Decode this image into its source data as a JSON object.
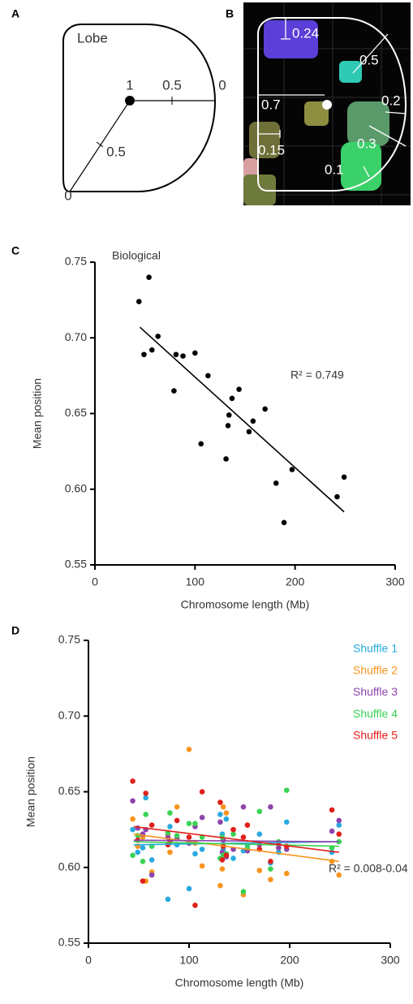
{
  "figure": {
    "panel_a": {
      "label": "A",
      "lobe_label": "Lobe",
      "center_label": "1",
      "radial_labels": [
        "0.5",
        "0",
        "0.5",
        "0"
      ]
    },
    "panel_b": {
      "label": "B",
      "distance_labels": [
        "0.24",
        "0.5",
        "0.7",
        "0.2",
        "0.15",
        "0.3",
        "0.1"
      ]
    }
  },
  "chart_data": [
    {
      "type": "scatter",
      "panel_label": "C",
      "annotation": "Biological",
      "r2_label": "R² = 0.749",
      "x_label": "Chromosome length (Mb)",
      "y_label": "Mean position",
      "xlim": [
        0,
        300
      ],
      "ylim": [
        0.55,
        0.75
      ],
      "xticks": [
        0,
        100,
        200,
        300
      ],
      "yticks": [
        0.55,
        {
          "value": 0.6,
          "label": "0.60"
        },
        0.65,
        {
          "value": 0.7,
          "label": "0.70"
        },
        0.75
      ],
      "x": [
        44,
        54,
        49,
        57,
        63,
        79,
        81,
        88,
        100,
        106,
        113,
        131,
        133,
        134,
        137,
        144,
        154,
        158,
        170,
        181,
        189,
        197,
        242,
        249
      ],
      "series": [
        {
          "color": "#000000",
          "values": [
            0.724,
            0.74,
            0.689,
            0.692,
            0.701,
            0.665,
            0.689,
            0.688,
            0.69,
            0.63,
            0.675,
            0.62,
            0.642,
            0.649,
            0.66,
            0.666,
            0.638,
            0.645,
            0.653,
            0.604,
            0.578,
            0.613,
            0.595,
            0.608
          ],
          "fit": {
            "x": [
              45,
              249
            ],
            "values": [
              0.707,
              0.585
            ]
          }
        }
      ]
    },
    {
      "type": "scatter",
      "panel_label": "D",
      "r2_label": "R² = 0.008-0.04",
      "x_label": "Chromosome length (Mb)",
      "y_label": "Mean position",
      "xlim": [
        0,
        300
      ],
      "ylim": [
        0.55,
        0.75
      ],
      "xticks": [
        0,
        100,
        200,
        300
      ],
      "yticks": [
        0.55,
        {
          "value": 0.6,
          "label": "0.60"
        },
        0.65,
        {
          "value": 0.7,
          "label": "0.70"
        },
        0.75
      ],
      "x": [
        44,
        54,
        49,
        57,
        63,
        79,
        81,
        88,
        100,
        106,
        113,
        131,
        133,
        134,
        137,
        144,
        154,
        158,
        170,
        181,
        189,
        197,
        242,
        249
      ],
      "series": [
        {
          "name": "Shuffle 1",
          "color": "#29a9e0",
          "values": [
            0.625,
            0.613,
            0.61,
            0.646,
            0.605,
            0.579,
            0.627,
            0.615,
            0.586,
            0.609,
            0.612,
            0.635,
            0.622,
            0.612,
            0.632,
            0.606,
            0.611,
            0.615,
            0.622,
            0.603,
            0.61,
            0.63,
            0.61,
            0.628
          ],
          "fit": {
            "x": [
              45,
              249
            ],
            "values": [
              0.615,
              0.617
            ]
          }
        },
        {
          "name": "Shuffle 2",
          "color": "#f7941d",
          "values": [
            0.632,
            0.62,
            0.614,
            0.591,
            0.597,
            0.622,
            0.61,
            0.64,
            0.678,
            0.616,
            0.601,
            0.588,
            0.599,
            0.64,
            0.636,
            0.625,
            0.582,
            0.628,
            0.598,
            0.592,
            0.613,
            0.596,
            0.604,
            0.595
          ],
          "fit": {
            "x": [
              45,
              249
            ],
            "values": [
              0.622,
              0.604
            ]
          }
        },
        {
          "name": "Shuffle 3",
          "color": "#8e44ad",
          "values": [
            0.644,
            0.622,
            0.626,
            0.625,
            0.595,
            0.62,
            0.617,
            0.619,
            0.616,
            0.627,
            0.633,
            0.63,
            0.61,
            0.618,
            0.607,
            0.612,
            0.64,
            0.611,
            0.615,
            0.64,
            0.613,
            0.612,
            0.624,
            0.631
          ],
          "fit": {
            "x": [
              45,
              249
            ],
            "values": [
              0.618,
              0.617
            ]
          }
        },
        {
          "name": "Shuffle 4",
          "color": "#39d353",
          "values": [
            0.608,
            0.604,
            0.621,
            0.635,
            0.614,
            0.623,
            0.636,
            0.621,
            0.629,
            0.629,
            0.62,
            0.606,
            0.62,
            0.608,
            0.609,
            0.622,
            0.584,
            0.613,
            0.637,
            0.599,
            0.617,
            0.651,
            0.613,
            0.617
          ],
          "fit": {
            "x": [
              45,
              249
            ],
            "values": [
              0.617,
              0.614
            ]
          }
        },
        {
          "name": "Shuffle 5",
          "color": "#e0201b",
          "values": [
            0.657,
            0.591,
            0.618,
            0.649,
            0.628,
            0.615,
            0.617,
            0.631,
            0.62,
            0.575,
            0.65,
            0.643,
            0.605,
            0.614,
            0.608,
            0.625,
            0.62,
            0.628,
            0.612,
            0.604,
            0.616,
            0.614,
            0.638,
            0.622
          ],
          "fit": {
            "x": [
              45,
              249
            ],
            "values": [
              0.627,
              0.61
            ]
          }
        }
      ]
    }
  ]
}
